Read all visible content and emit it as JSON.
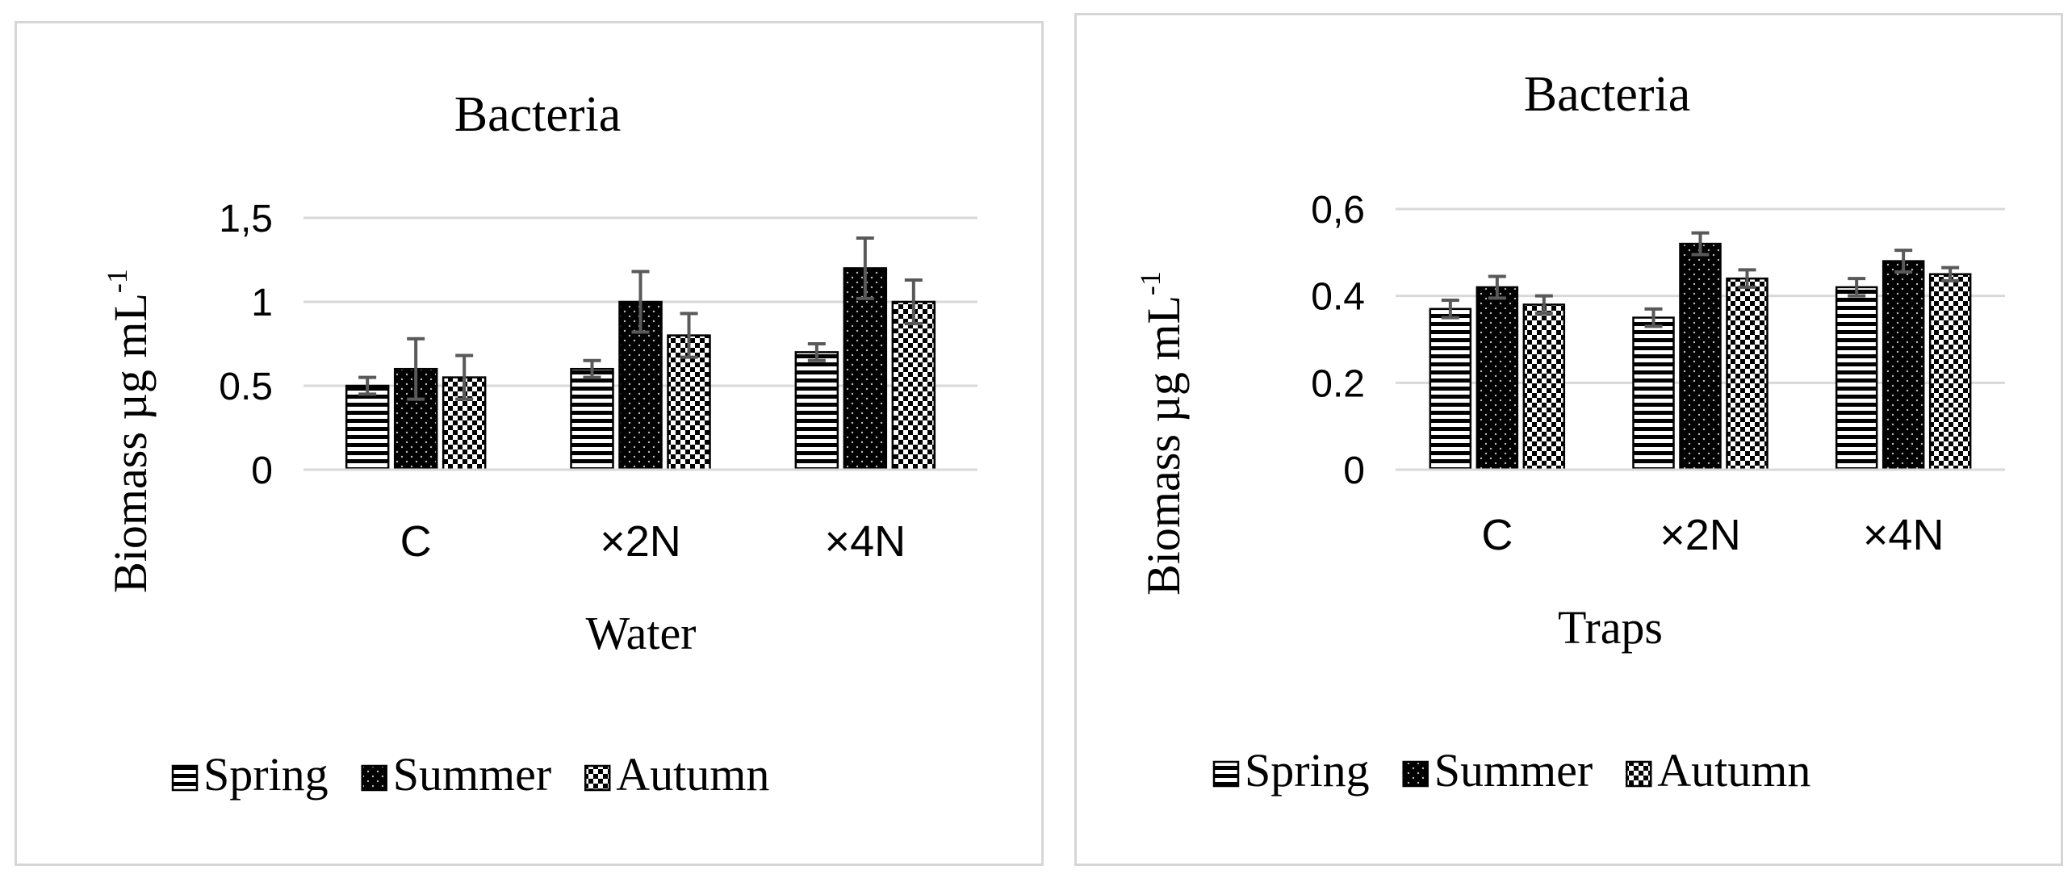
{
  "colors": {
    "ink": "#000000",
    "grid": "#d9d9d9",
    "error": "#595959",
    "border": "#d6d6d6"
  },
  "chart_data": [
    {
      "type": "bar",
      "title": "Bacteria",
      "xlabel": "Water",
      "ylabel": "Biomass µg mL",
      "ylabel_sup": "-1",
      "categories": [
        "C",
        "×2N",
        "×4N"
      ],
      "ylim": [
        0,
        1.5
      ],
      "yticks": [
        0,
        0.5,
        1,
        1.5
      ],
      "ytick_labels": [
        "0",
        "0.5",
        "1",
        "1,5"
      ],
      "series": [
        {
          "name": "Spring",
          "pattern": "hstripes",
          "values": [
            0.5,
            0.6,
            0.7
          ],
          "errors": [
            0.05,
            0.05,
            0.05
          ]
        },
        {
          "name": "Summer",
          "pattern": "dots",
          "values": [
            0.6,
            1.0,
            1.2
          ],
          "errors": [
            0.18,
            0.18,
            0.18
          ]
        },
        {
          "name": "Autumn",
          "pattern": "checker",
          "values": [
            0.55,
            0.8,
            1.0
          ],
          "errors": [
            0.13,
            0.13,
            0.13
          ]
        }
      ],
      "legend": "bottom"
    },
    {
      "type": "bar",
      "title": "Bacteria",
      "xlabel": "Traps",
      "ylabel": "Biomass µg mL",
      "ylabel_sup": "-1",
      "categories": [
        "C",
        "×2N",
        "×4N"
      ],
      "ylim": [
        0,
        0.6
      ],
      "yticks": [
        0,
        0.2,
        0.4,
        0.6
      ],
      "ytick_labels": [
        "0",
        "0.2",
        "0.4",
        "0,6"
      ],
      "series": [
        {
          "name": "Spring",
          "pattern": "hstripes",
          "values": [
            0.37,
            0.35,
            0.42
          ],
          "errors": [
            0.02,
            0.02,
            0.02
          ]
        },
        {
          "name": "Summer",
          "pattern": "dots",
          "values": [
            0.42,
            0.52,
            0.48
          ],
          "errors": [
            0.025,
            0.025,
            0.025
          ]
        },
        {
          "name": "Autumn",
          "pattern": "checker",
          "values": [
            0.38,
            0.44,
            0.45
          ],
          "errors": [
            0.02,
            0.02,
            0.015
          ]
        }
      ],
      "legend": "bottom"
    }
  ]
}
